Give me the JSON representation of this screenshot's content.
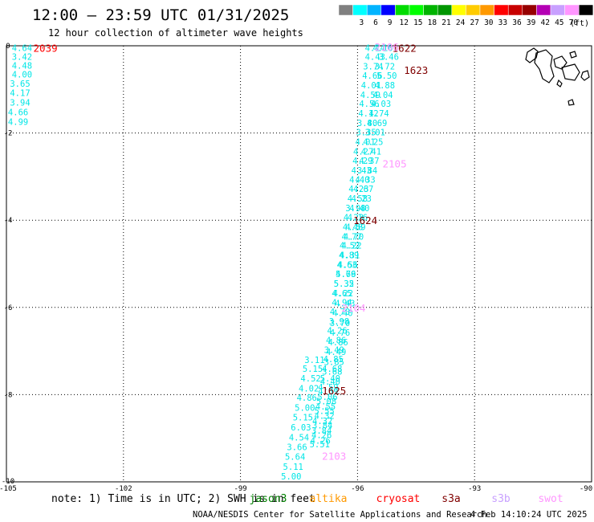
{
  "header": {
    "title": "12:00 – 23:59 UTC 01/31/2025",
    "subtitle": "12 hour collection of altimeter wave heights"
  },
  "legend": {
    "unit": "(ft)",
    "bins": [
      {
        "label": "",
        "color": "#808080"
      },
      {
        "label": "3",
        "color": "#00ffff"
      },
      {
        "label": "6",
        "color": "#00b4ff"
      },
      {
        "label": "9",
        "color": "#0000ff"
      },
      {
        "label": "12",
        "color": "#00dc00"
      },
      {
        "label": "15",
        "color": "#00ff00"
      },
      {
        "label": "18",
        "color": "#00b400"
      },
      {
        "label": "21",
        "color": "#009600"
      },
      {
        "label": "24",
        "color": "#ffff00"
      },
      {
        "label": "27",
        "color": "#ffcc00"
      },
      {
        "label": "30",
        "color": "#ff9900"
      },
      {
        "label": "33",
        "color": "#ff0000"
      },
      {
        "label": "36",
        "color": "#c80000"
      },
      {
        "label": "39",
        "color": "#960000"
      },
      {
        "label": "42",
        "color": "#b400b4"
      },
      {
        "label": "45",
        "color": "#c8a0ff"
      },
      {
        "label": "70",
        "color": "#ff96ff"
      },
      {
        "label": "",
        "color": "#000000"
      }
    ]
  },
  "axes": {
    "lon_ticks": [
      "-105",
      "-102",
      "-99",
      "-96",
      "-93",
      "-90"
    ],
    "lat_ticks": [
      "0",
      "-2",
      "-4",
      "-6",
      "-8",
      "-10"
    ]
  },
  "footer": {
    "note": "note:  1) Time is in UTC;  2) SWH is in feet",
    "satellites": [
      {
        "name": "jason3",
        "color": "#008000"
      },
      {
        "name": "altika",
        "color": "#ff9900"
      },
      {
        "name": "cryosat",
        "color": "#ff0000"
      },
      {
        "name": "s3a",
        "color": "#800000"
      },
      {
        "name": "s3b",
        "color": "#c8a0ff"
      },
      {
        "name": "swot",
        "color": "#ff96ff"
      }
    ],
    "credit": "NOAA/NESDIS Center for Satellite Applications and Research",
    "timestamp": "4 Feb 14:10:24 UTC 2025"
  },
  "chart_data": {
    "type": "scatter",
    "xlabel": "",
    "ylabel": "",
    "xlim": [
      -105,
      -90
    ],
    "ylim": [
      -10,
      0
    ],
    "grid": true,
    "tracks": [
      {
        "name": "track-west",
        "color": "#00e6e6",
        "points": [
          {
            "lon": -104.6,
            "lat": -0.05,
            "v": "4.64"
          },
          {
            "lon": -104.6,
            "lat": -0.25,
            "v": "3.42"
          },
          {
            "lon": -104.6,
            "lat": -0.45,
            "v": "4.48"
          },
          {
            "lon": -104.6,
            "lat": -0.65,
            "v": "4.00"
          },
          {
            "lon": -104.65,
            "lat": -0.87,
            "v": "3.65"
          },
          {
            "lon": -104.65,
            "lat": -1.08,
            "v": "4.17"
          },
          {
            "lon": -104.65,
            "lat": -1.3,
            "v": "3.94"
          },
          {
            "lon": -104.7,
            "lat": -1.52,
            "v": "4.66"
          },
          {
            "lon": -104.7,
            "lat": -1.74,
            "v": "4.99"
          }
        ]
      },
      {
        "name": "track-main-right",
        "color": "#00e6e6",
        "points": [
          {
            "lon": -95.55,
            "lat": -0.05,
            "v": "4.14"
          },
          {
            "lon": -95.55,
            "lat": -0.25,
            "v": "4.43"
          },
          {
            "lon": -95.6,
            "lat": -0.47,
            "v": "3.74"
          },
          {
            "lon": -95.62,
            "lat": -0.68,
            "v": "4.66"
          },
          {
            "lon": -95.65,
            "lat": -0.9,
            "v": "4.01"
          },
          {
            "lon": -95.67,
            "lat": -1.12,
            "v": "4.59"
          },
          {
            "lon": -95.7,
            "lat": -1.33,
            "v": "4.56"
          },
          {
            "lon": -95.72,
            "lat": -1.55,
            "v": "4.12"
          },
          {
            "lon": -95.75,
            "lat": -1.77,
            "v": "3.80"
          },
          {
            "lon": -95.78,
            "lat": -1.98,
            "v": "3.35"
          },
          {
            "lon": -95.8,
            "lat": -2.2,
            "v": "4.01"
          },
          {
            "lon": -95.85,
            "lat": -2.42,
            "v": "4.27"
          },
          {
            "lon": -95.87,
            "lat": -2.63,
            "v": "4.29"
          },
          {
            "lon": -95.9,
            "lat": -2.85,
            "v": "4.43"
          },
          {
            "lon": -95.95,
            "lat": -3.07,
            "v": "4.40"
          },
          {
            "lon": -95.97,
            "lat": -3.28,
            "v": "4.23"
          },
          {
            "lon": -96.0,
            "lat": -3.5,
            "v": "4.58"
          },
          {
            "lon": -96.05,
            "lat": -3.72,
            "v": "3.98"
          },
          {
            "lon": -96.1,
            "lat": -3.93,
            "v": "4.23"
          },
          {
            "lon": -96.12,
            "lat": -4.15,
            "v": "4.48"
          },
          {
            "lon": -96.15,
            "lat": -4.37,
            "v": "4.77"
          },
          {
            "lon": -96.2,
            "lat": -4.58,
            "v": "4.52"
          },
          {
            "lon": -96.22,
            "lat": -4.8,
            "v": "4.89"
          },
          {
            "lon": -96.27,
            "lat": -5.02,
            "v": "4.63"
          },
          {
            "lon": -96.3,
            "lat": -5.23,
            "v": "4.79"
          },
          {
            "lon": -96.35,
            "lat": -5.45,
            "v": "5.35"
          },
          {
            "lon": -96.37,
            "lat": -5.67,
            "v": "4.22"
          },
          {
            "lon": -96.4,
            "lat": -5.88,
            "v": "4.94"
          },
          {
            "lon": -96.45,
            "lat": -6.1,
            "v": "4.70"
          },
          {
            "lon": -96.47,
            "lat": -6.32,
            "v": "3.98"
          },
          {
            "lon": -96.52,
            "lat": -6.53,
            "v": "4.26"
          },
          {
            "lon": -96.55,
            "lat": -6.75,
            "v": "4.86"
          },
          {
            "lon": -96.6,
            "lat": -6.97,
            "v": "3.49"
          },
          {
            "lon": -96.62,
            "lat": -7.18,
            "v": "4.85"
          },
          {
            "lon": -96.65,
            "lat": -7.4,
            "v": "4.68"
          },
          {
            "lon": -96.7,
            "lat": -7.62,
            "v": "5.40"
          },
          {
            "lon": -96.75,
            "lat": -7.83,
            "v": "4.59"
          },
          {
            "lon": -96.77,
            "lat": -8.05,
            "v": "5.06"
          },
          {
            "lon": -96.82,
            "lat": -8.27,
            "v": "4.55"
          },
          {
            "lon": -96.85,
            "lat": -8.48,
            "v": "4.32"
          },
          {
            "lon": -96.9,
            "lat": -8.7,
            "v": "3.84"
          },
          {
            "lon": -96.92,
            "lat": -8.92,
            "v": "4.26"
          },
          {
            "lon": -96.97,
            "lat": -9.13,
            "v": "5.51"
          }
        ]
      },
      {
        "name": "track-main-left",
        "color": "#00e6e6",
        "points": [
          {
            "lon": -95.35,
            "lat": -0.05,
            "v": "4.10"
          },
          {
            "lon": -95.2,
            "lat": -0.25,
            "v": "3.46"
          },
          {
            "lon": -95.3,
            "lat": -0.47,
            "v": "3.72"
          },
          {
            "lon": -95.25,
            "lat": -0.68,
            "v": "5.50"
          },
          {
            "lon": -95.3,
            "lat": -0.9,
            "v": "4.88"
          },
          {
            "lon": -95.35,
            "lat": -1.12,
            "v": "4.04"
          },
          {
            "lon": -95.4,
            "lat": -1.33,
            "v": "4.03"
          },
          {
            "lon": -95.45,
            "lat": -1.55,
            "v": "4.74"
          },
          {
            "lon": -95.5,
            "lat": -1.77,
            "v": "4.69"
          },
          {
            "lon": -95.55,
            "lat": -1.98,
            "v": "3.01"
          },
          {
            "lon": -95.6,
            "lat": -2.2,
            "v": "4.25"
          },
          {
            "lon": -95.65,
            "lat": -2.42,
            "v": "4.41"
          },
          {
            "lon": -95.7,
            "lat": -2.63,
            "v": "4.37"
          },
          {
            "lon": -95.75,
            "lat": -2.85,
            "v": "3.84"
          },
          {
            "lon": -95.8,
            "lat": -3.07,
            "v": "4.33"
          },
          {
            "lon": -95.85,
            "lat": -3.28,
            "v": "4.67"
          },
          {
            "lon": -95.9,
            "lat": -3.5,
            "v": "4.23"
          },
          {
            "lon": -95.95,
            "lat": -3.72,
            "v": "4.40"
          },
          {
            "lon": -96.0,
            "lat": -3.93,
            "v": "4.16"
          },
          {
            "lon": -96.05,
            "lat": -4.15,
            "v": "4.59"
          },
          {
            "lon": -96.1,
            "lat": -4.37,
            "v": "4.70"
          },
          {
            "lon": -96.15,
            "lat": -4.58,
            "v": "4.22"
          },
          {
            "lon": -96.2,
            "lat": -4.8,
            "v": "4.31"
          },
          {
            "lon": -96.25,
            "lat": -5.02,
            "v": "4.56"
          },
          {
            "lon": -96.3,
            "lat": -5.23,
            "v": "5.66"
          },
          {
            "lon": -96.35,
            "lat": -5.45,
            "v": "5.32"
          },
          {
            "lon": -96.4,
            "lat": -5.67,
            "v": "4.65"
          },
          {
            "lon": -96.32,
            "lat": -5.9,
            "v": "4.43"
          },
          {
            "lon": -96.38,
            "lat": -6.12,
            "v": "4.40"
          },
          {
            "lon": -96.45,
            "lat": -6.35,
            "v": "3.70"
          },
          {
            "lon": -96.45,
            "lat": -6.57,
            "v": "4.76"
          },
          {
            "lon": -96.5,
            "lat": -6.8,
            "v": "4.86"
          },
          {
            "lon": -96.55,
            "lat": -7.02,
            "v": "4.49"
          },
          {
            "lon": -96.6,
            "lat": -7.25,
            "v": "3.85"
          },
          {
            "lon": -96.65,
            "lat": -7.47,
            "v": "3.68"
          },
          {
            "lon": -96.7,
            "lat": -7.7,
            "v": "4.40"
          },
          {
            "lon": -96.75,
            "lat": -7.92,
            "v": "4.59"
          },
          {
            "lon": -96.8,
            "lat": -8.15,
            "v": "5.08"
          },
          {
            "lon": -96.85,
            "lat": -8.37,
            "v": "5.55"
          },
          {
            "lon": -96.9,
            "lat": -8.6,
            "v": "4.32"
          },
          {
            "lon": -96.92,
            "lat": -8.82,
            "v": "3.84"
          },
          {
            "lon": -96.95,
            "lat": -9.05,
            "v": "4.26"
          }
        ]
      },
      {
        "name": "track-main-outer",
        "color": "#00e6e6",
        "points": [
          {
            "lon": -97.1,
            "lat": -7.2,
            "v": "3.11"
          },
          {
            "lon": -97.15,
            "lat": -7.4,
            "v": "5.15"
          },
          {
            "lon": -97.2,
            "lat": -7.62,
            "v": "4.52"
          },
          {
            "lon": -97.25,
            "lat": -7.85,
            "v": "4.02"
          },
          {
            "lon": -97.3,
            "lat": -8.07,
            "v": "4.86"
          },
          {
            "lon": -97.35,
            "lat": -8.3,
            "v": "5.00"
          },
          {
            "lon": -97.4,
            "lat": -8.52,
            "v": "5.15"
          },
          {
            "lon": -97.45,
            "lat": -8.75,
            "v": "6.03"
          },
          {
            "lon": -97.5,
            "lat": -8.98,
            "v": "4.54"
          },
          {
            "lon": -97.55,
            "lat": -9.2,
            "v": "3.66"
          },
          {
            "lon": -97.6,
            "lat": -9.42,
            "v": "5.64"
          },
          {
            "lon": -97.65,
            "lat": -9.65,
            "v": "5.11"
          },
          {
            "lon": -97.7,
            "lat": -9.87,
            "v": "5.00"
          }
        ]
      }
    ],
    "time_labels": [
      {
        "lon": -104.0,
        "lat": -0.05,
        "text": "2039",
        "color": "#ff0000"
      },
      {
        "lon": -94.8,
        "lat": -0.05,
        "text": "1622",
        "color": "#800000"
      },
      {
        "lon": -95.25,
        "lat": -0.02,
        "text": "2106",
        "color": "#ff96ff"
      },
      {
        "lon": -94.5,
        "lat": -0.55,
        "text": "1623",
        "color": "#800000"
      },
      {
        "lon": -95.05,
        "lat": -2.7,
        "text": "2105",
        "color": "#ff96ff"
      },
      {
        "lon": -95.8,
        "lat": -4.0,
        "text": "1624",
        "color": "#800000"
      },
      {
        "lon": -96.1,
        "lat": -6.0,
        "text": "2104",
        "color": "#ff96ff"
      },
      {
        "lon": -96.6,
        "lat": -7.9,
        "text": "1625",
        "color": "#800000"
      },
      {
        "lon": -96.6,
        "lat": -9.4,
        "text": "2103",
        "color": "#ff96ff"
      }
    ]
  }
}
